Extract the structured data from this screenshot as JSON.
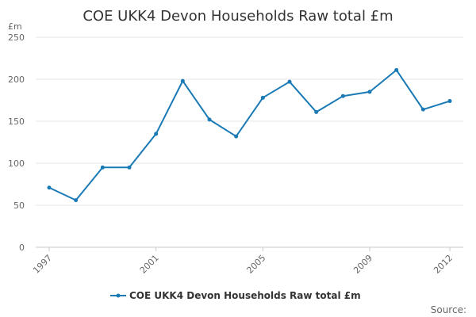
{
  "chart_data": {
    "type": "line",
    "title": "COE UKK4 Devon Households Raw total £m",
    "ylabel": "£m",
    "xlabel": "",
    "x": [
      1997,
      1998,
      1999,
      2000,
      2001,
      2002,
      2003,
      2004,
      2005,
      2006,
      2007,
      2008,
      2009,
      2010,
      2011,
      2012
    ],
    "series": [
      {
        "name": "COE UKK4 Devon Households Raw total £m",
        "color": "#1a7ab5",
        "values": [
          71,
          56,
          95,
          95,
          135,
          198,
          152,
          132,
          178,
          197,
          161,
          180,
          185,
          211,
          164,
          174
        ]
      }
    ],
    "xticks": [
      "1997",
      "2001",
      "2005",
      "2009",
      "2012"
    ],
    "yticks": [
      0,
      50,
      100,
      150,
      200,
      250
    ],
    "ylim": [
      0,
      250
    ],
    "grid": "horizontal",
    "legend_position": "bottom"
  },
  "source_label": "Source:"
}
